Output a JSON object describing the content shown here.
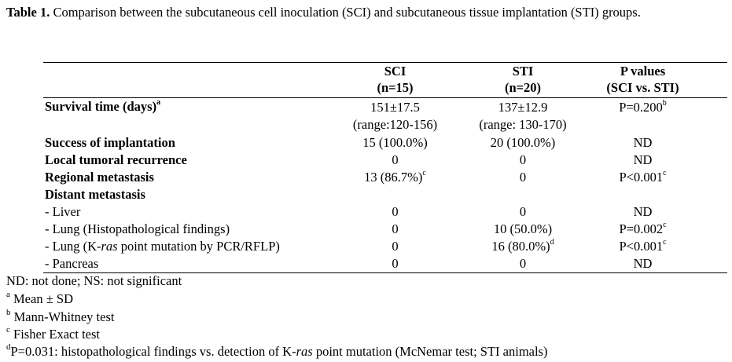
{
  "caption": {
    "prefix": "Table 1.",
    "text": "Comparison between the subcutaneous cell inoculation (SCI) and subcutaneous tissue implantation (STI)",
    "text2": "groups."
  },
  "header": {
    "col1_a": "SCI",
    "col1_b": "(n=15)",
    "col2_a": "STI",
    "col2_b": "(n=20)",
    "col3_a": "P values",
    "col3_b": "(SCI vs. STI)"
  },
  "rows": {
    "survival_label": "Survival time (days)",
    "survival_sup": "a",
    "survival_sci": "151±17.5",
    "survival_sci_range": "(range:120-156)",
    "survival_sti": "137±12.9",
    "survival_sti_range": "(range: 130-170)",
    "survival_p": "P=0.200",
    "survival_p_sup": "b",
    "success_label": "Success of implantation",
    "success_sci": "15 (100.0%)",
    "success_sti": "20 (100.0%)",
    "success_p": "ND",
    "local_label": "Local tumoral recurrence",
    "local_sci": "0",
    "local_sti": "0",
    "local_p": "ND",
    "regional_label": "Regional metastasis",
    "regional_sci": "13 (86.7%)",
    "regional_sci_sup": "c",
    "regional_sti": "0",
    "regional_p": "P<0.001",
    "regional_p_sup": "c",
    "distant_label": "Distant metastasis",
    "liver_label": "- Liver",
    "liver_sci": "0",
    "liver_sti": "0",
    "liver_p": "ND",
    "lunghist_label": "- Lung (Histopathological findings)",
    "lunghist_sci": "0",
    "lunghist_sti": "10 (50.0%)",
    "lunghist_p": "P=0.002",
    "lunghist_p_sup": "c",
    "lungkras_label_a": "- Lung (K-",
    "lungkras_label_i": "ras",
    "lungkras_label_b": " point mutation by PCR/RFLP)",
    "lungkras_sci": "0",
    "lungkras_sti": "16 (80.0%)",
    "lungkras_sti_sup": "d",
    "lungkras_p": "P<0.001",
    "lungkras_p_sup": "c",
    "pancreas_label": "- Pancreas",
    "pancreas_sci": "0",
    "pancreas_sti": "0",
    "pancreas_p": "ND"
  },
  "footnotes": {
    "abbrev": "ND: not done; NS: not significant",
    "a_mark": "a",
    "a_text": "Mean ± SD",
    "b_mark": "b",
    "b_text": "Mann-Whitney test",
    "c_mark": "c",
    "c_text": "Fisher Exact test",
    "d_mark": "d",
    "d_text_a": "P=0.031: histopathological findings vs. detection of K-",
    "d_text_i": "ras",
    "d_text_b": " point mutation (McNemar test; STI animals)"
  }
}
